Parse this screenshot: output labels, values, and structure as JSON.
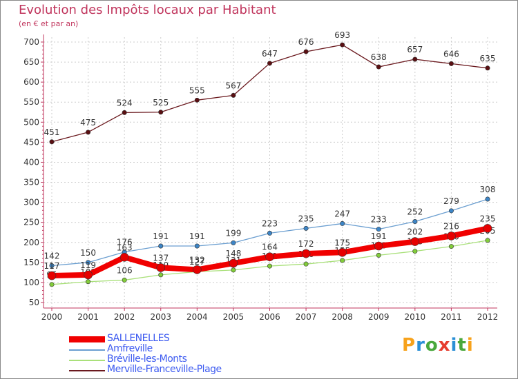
{
  "title": "Evolution des Impôts locaux par Habitant",
  "subtitle": "(en € et par an)",
  "logo": {
    "text": "Proxiti",
    "letters": [
      "P",
      "r",
      "o",
      "x",
      "i",
      "t",
      "i"
    ],
    "colors": [
      "#f7a21b",
      "#2a8fd6",
      "#4aa83c",
      "#e63c2e",
      "#2a8fd6",
      "#4aa83c",
      "#f7a21b"
    ]
  },
  "colors": {
    "title": "#c0345c",
    "axis": "#c0345c",
    "grid": "#cccccc",
    "label": "#333333",
    "legend_text": "#3c5af0"
  },
  "chart_data": {
    "type": "line",
    "title": "Evolution des Impôts locaux par Habitant",
    "subtitle": "(en € et par an)",
    "xlabel": "",
    "ylabel": "",
    "ylim": [
      50,
      700
    ],
    "yticks": [
      50,
      100,
      150,
      200,
      250,
      300,
      350,
      400,
      450,
      500,
      550,
      600,
      650,
      700
    ],
    "x": [
      "2000",
      "2001",
      "2002",
      "2003",
      "2004",
      "2005",
      "2006",
      "2007",
      "2008",
      "2009",
      "2010",
      "2011",
      "2012"
    ],
    "grid": true,
    "legend_position": "bottom-left",
    "series": [
      {
        "name": "Merville-Franceville-Plage",
        "color": "#6b1a1f",
        "marker": "#5a0f12",
        "values": [
          451,
          475,
          524,
          525,
          555,
          567,
          647,
          676,
          693,
          638,
          657,
          646,
          635
        ],
        "labels": [
          "451",
          "475",
          "524",
          "525",
          "555",
          "567",
          "647",
          "676",
          "693",
          "638",
          "657",
          "646",
          "635"
        ]
      },
      {
        "name": "Amfreville",
        "color": "#6a9ed0",
        "marker": "#3d85c6",
        "values": [
          142,
          150,
          176,
          191,
          191,
          199,
          223,
          235,
          247,
          233,
          252,
          279,
          308
        ],
        "labels": [
          "142",
          "150",
          "176",
          "191",
          "191",
          "199",
          "223",
          "235",
          "247",
          "233",
          "252",
          "279",
          "308"
        ]
      },
      {
        "name": "Bréville-les-Monts",
        "color": "#a9e07a",
        "marker": "#82cc3a",
        "values": [
          95,
          102,
          106,
          119,
          127,
          131,
          141,
          146,
          155,
          168,
          178,
          190,
          205
        ],
        "labels": [
          "95",
          "102",
          "106",
          "119",
          "127",
          "131",
          "141",
          "146",
          "155",
          "168",
          "178",
          "190",
          "205"
        ]
      },
      {
        "name": "SALLENELLES",
        "color": "#f00000",
        "marker": "#e60000",
        "values": [
          117,
          119,
          163,
          137,
          132,
          148,
          164,
          172,
          175,
          191,
          202,
          216,
          235
        ],
        "labels": [
          "117",
          "119",
          "163",
          "137",
          "132",
          "148",
          "164",
          "172",
          "175",
          "191",
          "202",
          "216",
          "235"
        ]
      }
    ],
    "legend": [
      {
        "name": "SALLENELLES",
        "color": "#f00000",
        "width": 9
      },
      {
        "name": "Amfreville",
        "color": "#6a9ed0",
        "width": 2
      },
      {
        "name": "Bréville-les-Monts",
        "color": "#a9e07a",
        "width": 2
      },
      {
        "name": "Merville-Franceville-Plage",
        "color": "#6b1a1f",
        "width": 2
      }
    ]
  }
}
